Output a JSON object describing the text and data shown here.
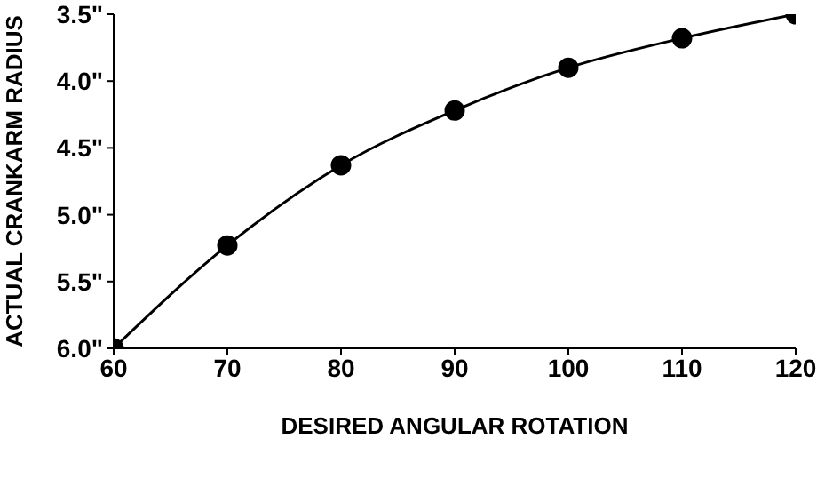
{
  "chart_data": {
    "type": "line",
    "xlabel": "DESIRED ANGULAR ROTATION",
    "ylabel": "ACTUAL CRANKARM RADIUS",
    "x": [
      60,
      70,
      80,
      90,
      100,
      110,
      120
    ],
    "series": [
      {
        "color": "#000000",
        "values": [
          6.0,
          5.23,
          4.63,
          4.22,
          3.9,
          3.68,
          3.5
        ]
      }
    ],
    "xlim": [
      60,
      120
    ],
    "xticks": [
      60,
      70,
      80,
      90,
      100,
      110,
      120
    ],
    "ylim": [
      6.0,
      3.5
    ],
    "yticks": [
      {
        "value": 3.5,
        "label": "3.5\""
      },
      {
        "value": 4.0,
        "label": "4.0\""
      },
      {
        "value": 4.5,
        "label": "4.5\""
      },
      {
        "value": 5.0,
        "label": "5.0\""
      },
      {
        "value": 5.5,
        "label": "5.5\""
      },
      {
        "value": 6.0,
        "label": "6.0\""
      }
    ],
    "grid": false,
    "legend": false,
    "marker": "circle",
    "line_style": "solid"
  }
}
